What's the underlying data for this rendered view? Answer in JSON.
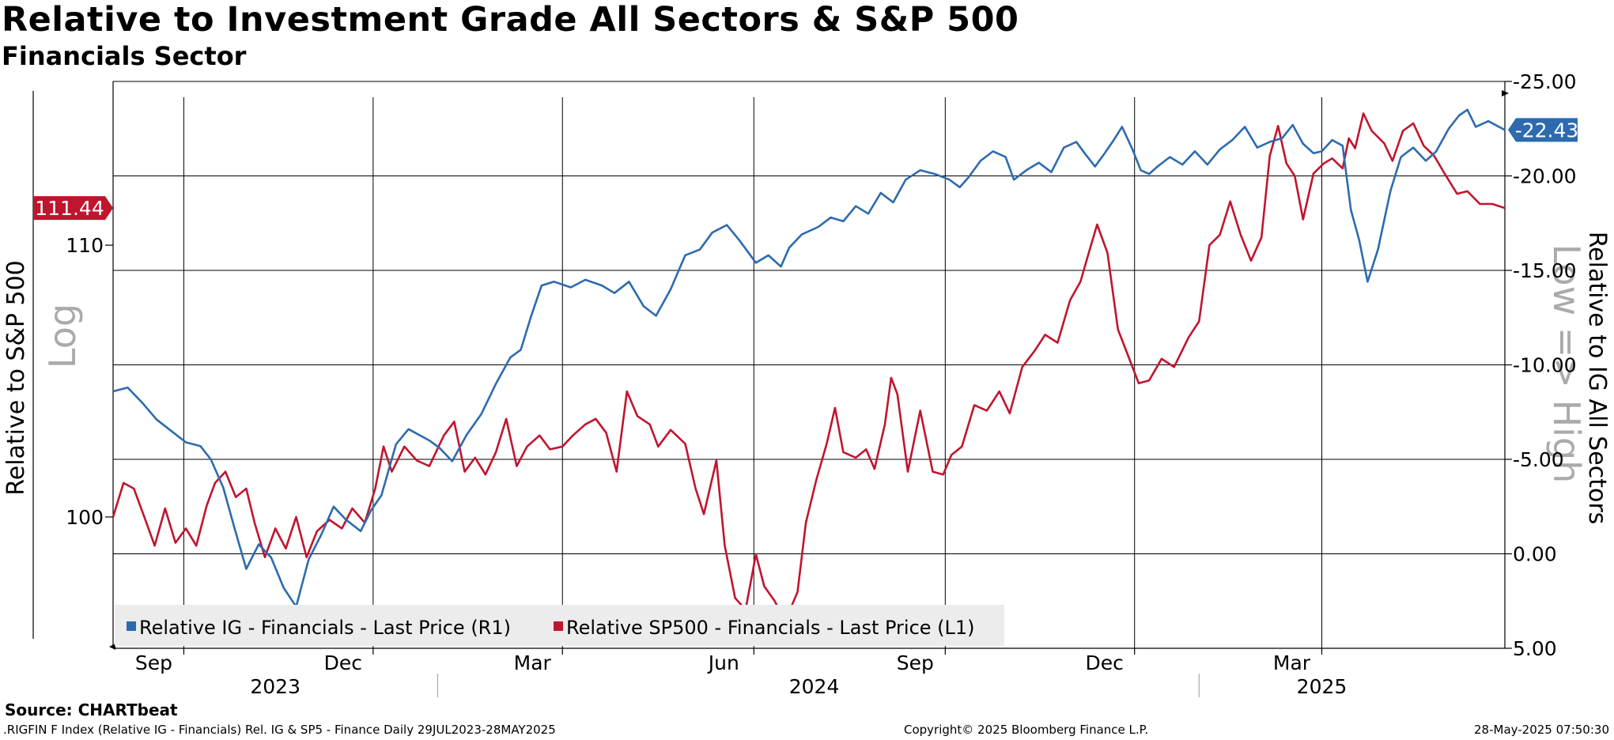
{
  "header": {
    "title": "Relative to Investment Grade All Sectors & S&P 500",
    "subtitle": "Financials Sector"
  },
  "footer": {
    "source": "Source: CHARTbeat",
    "index_info": ".RIGFIN F Index (Relative IG - Financials) Rel. IG & SP5 - Finance  Daily 29JUL2023-28MAY2025",
    "copyright": "Copyright© 2025 Bloomberg Finance L.P.",
    "timestamp": "28-May-2025 07:50:30"
  },
  "chart_data": {
    "type": "line",
    "title": "Relative to Investment Grade All Sectors & S&P 500",
    "subtitle": "Financials Sector",
    "left_axis": {
      "label": "Relative to S&P 500",
      "scale": "log",
      "scale_watermark": "Log",
      "ticks": [
        100,
        110
      ],
      "tick_labels": [
        "100",
        "110"
      ],
      "range": [
        95.5,
        116.5
      ]
    },
    "right_axis": {
      "label": "Relative to IG All Sectors",
      "inverted": true,
      "inversion_watermark": "Low => High",
      "ticks": [
        -25,
        -20,
        -15,
        -10,
        -5,
        0,
        5
      ],
      "tick_labels": [
        "-25.00",
        "-20.00",
        "-15.00",
        "-10.00",
        "-5.00",
        "0.00",
        "5.00"
      ],
      "range": [
        5,
        -25
      ]
    },
    "x_axis": {
      "range": [
        "2023-07-29",
        "2025-05-28"
      ],
      "month_ticks": [
        {
          "label": "Sep",
          "date": "2023-09-01"
        },
        {
          "label": "Dec",
          "date": "2023-12-01"
        },
        {
          "label": "Mar",
          "date": "2024-03-01"
        },
        {
          "label": "Jun",
          "date": "2024-06-01"
        },
        {
          "label": "Sep",
          "date": "2024-09-01"
        },
        {
          "label": "Dec",
          "date": "2024-12-01"
        },
        {
          "label": "Mar",
          "date": "2025-03-01"
        }
      ],
      "year_labels": [
        {
          "label": "2023",
          "date": "2023-10-15"
        },
        {
          "label": "2024",
          "date": "2024-06-30"
        },
        {
          "label": "2025",
          "date": "2025-03-01"
        }
      ],
      "year_separators": [
        "2024-01-01",
        "2025-01-01"
      ]
    },
    "grid": true,
    "legend_position": "bottom-left",
    "series": [
      {
        "name": "Relative IG - Financials - Last Price (R1)",
        "axis": "right",
        "color": "#2D6BAE",
        "last_value": -22.43,
        "last_label": "-22.43",
        "points": [
          [
            "2023-07-29",
            -8.6
          ],
          [
            "2023-08-05",
            -8.8
          ],
          [
            "2023-08-12",
            -8.0
          ],
          [
            "2023-08-19",
            -7.1
          ],
          [
            "2023-08-26",
            -6.5
          ],
          [
            "2023-09-02",
            -5.9
          ],
          [
            "2023-09-09",
            -5.7
          ],
          [
            "2023-09-14",
            -5.0
          ],
          [
            "2023-09-20",
            -3.5
          ],
          [
            "2023-09-25",
            -1.5
          ],
          [
            "2023-10-01",
            0.8
          ],
          [
            "2023-10-07",
            -0.5
          ],
          [
            "2023-10-13",
            0.2
          ],
          [
            "2023-10-19",
            1.8
          ],
          [
            "2023-10-25",
            2.8
          ],
          [
            "2023-10-31",
            0.3
          ],
          [
            "2023-11-06",
            -1.0
          ],
          [
            "2023-11-12",
            -2.5
          ],
          [
            "2023-11-18",
            -1.8
          ],
          [
            "2023-11-25",
            -1.2
          ],
          [
            "2023-11-30",
            -2.3
          ],
          [
            "2023-12-05",
            -3.1
          ],
          [
            "2023-12-12",
            -5.8
          ],
          [
            "2023-12-18",
            -6.6
          ],
          [
            "2023-12-28",
            -6.0
          ],
          [
            "2024-01-02",
            -5.6
          ],
          [
            "2024-01-08",
            -4.9
          ],
          [
            "2024-01-15",
            -6.3
          ],
          [
            "2024-01-22",
            -7.4
          ],
          [
            "2024-01-29",
            -9.0
          ],
          [
            "2024-02-05",
            -10.4
          ],
          [
            "2024-02-10",
            -10.8
          ],
          [
            "2024-02-15",
            -12.6
          ],
          [
            "2024-02-20",
            -14.2
          ],
          [
            "2024-02-26",
            -14.4
          ],
          [
            "2024-03-05",
            -14.1
          ],
          [
            "2024-03-12",
            -14.5
          ],
          [
            "2024-03-20",
            -14.2
          ],
          [
            "2024-03-26",
            -13.8
          ],
          [
            "2024-04-02",
            -14.4
          ],
          [
            "2024-04-09",
            -13.1
          ],
          [
            "2024-04-15",
            -12.6
          ],
          [
            "2024-04-22",
            -14.0
          ],
          [
            "2024-04-29",
            -15.8
          ],
          [
            "2024-05-06",
            -16.1
          ],
          [
            "2024-05-12",
            -17.0
          ],
          [
            "2024-05-19",
            -17.4
          ],
          [
            "2024-05-25",
            -16.6
          ],
          [
            "2024-06-02",
            -15.4
          ],
          [
            "2024-06-08",
            -15.8
          ],
          [
            "2024-06-14",
            -15.2
          ],
          [
            "2024-06-18",
            -16.2
          ],
          [
            "2024-06-24",
            -16.9
          ],
          [
            "2024-07-02",
            -17.3
          ],
          [
            "2024-07-08",
            -17.8
          ],
          [
            "2024-07-14",
            -17.6
          ],
          [
            "2024-07-20",
            -18.4
          ],
          [
            "2024-07-26",
            -18.0
          ],
          [
            "2024-08-01",
            -19.1
          ],
          [
            "2024-08-07",
            -18.6
          ],
          [
            "2024-08-13",
            -19.8
          ],
          [
            "2024-08-20",
            -20.3
          ],
          [
            "2024-08-27",
            -20.1
          ],
          [
            "2024-09-03",
            -19.8
          ],
          [
            "2024-09-08",
            -19.4
          ],
          [
            "2024-09-12",
            -19.9
          ],
          [
            "2024-09-18",
            -20.8
          ],
          [
            "2024-09-24",
            -21.3
          ],
          [
            "2024-09-30",
            -21.0
          ],
          [
            "2024-10-04",
            -19.8
          ],
          [
            "2024-10-10",
            -20.3
          ],
          [
            "2024-10-16",
            -20.7
          ],
          [
            "2024-10-22",
            -20.2
          ],
          [
            "2024-10-28",
            -21.5
          ],
          [
            "2024-11-03",
            -21.8
          ],
          [
            "2024-11-07",
            -21.2
          ],
          [
            "2024-11-12",
            -20.5
          ],
          [
            "2024-11-16",
            -21.1
          ],
          [
            "2024-11-21",
            -21.9
          ],
          [
            "2024-11-25",
            -22.6
          ],
          [
            "2024-11-30",
            -21.4
          ],
          [
            "2024-12-04",
            -20.3
          ],
          [
            "2024-12-08",
            -20.1
          ],
          [
            "2024-12-12",
            -20.5
          ],
          [
            "2024-12-18",
            -21.0
          ],
          [
            "2024-12-24",
            -20.6
          ],
          [
            "2024-12-30",
            -21.3
          ],
          [
            "2025-01-05",
            -20.6
          ],
          [
            "2025-01-11",
            -21.4
          ],
          [
            "2025-01-17",
            -21.9
          ],
          [
            "2025-01-23",
            -22.6
          ],
          [
            "2025-01-29",
            -21.5
          ],
          [
            "2025-02-04",
            -21.8
          ],
          [
            "2025-02-10",
            -22.0
          ],
          [
            "2025-02-15",
            -22.7
          ],
          [
            "2025-02-20",
            -21.7
          ],
          [
            "2025-02-25",
            -21.2
          ],
          [
            "2025-03-01",
            -21.3
          ],
          [
            "2025-03-06",
            -21.9
          ],
          [
            "2025-03-11",
            -21.6
          ],
          [
            "2025-03-15",
            -18.2
          ],
          [
            "2025-03-19",
            -16.6
          ],
          [
            "2025-03-23",
            -14.4
          ],
          [
            "2025-03-28",
            -16.1
          ],
          [
            "2025-04-03",
            -19.2
          ],
          [
            "2025-04-08",
            -21.0
          ],
          [
            "2025-04-14",
            -21.5
          ],
          [
            "2025-04-20",
            -20.8
          ],
          [
            "2025-04-25",
            -21.3
          ],
          [
            "2025-05-01",
            -22.5
          ],
          [
            "2025-05-06",
            -23.2
          ],
          [
            "2025-05-10",
            -23.5
          ],
          [
            "2025-05-14",
            -22.6
          ],
          [
            "2025-05-20",
            -22.9
          ],
          [
            "2025-05-28",
            -22.43
          ]
        ]
      },
      {
        "name": "Relative SP500 - Financials - Last Price (L1)",
        "axis": "left",
        "color": "#C0152F",
        "last_value": 111.44,
        "last_label": "111.44",
        "points": [
          [
            "2023-07-29",
            100.0
          ],
          [
            "2023-08-03",
            101.2
          ],
          [
            "2023-08-08",
            101.0
          ],
          [
            "2023-08-13",
            100.0
          ],
          [
            "2023-08-18",
            99.0
          ],
          [
            "2023-08-23",
            100.3
          ],
          [
            "2023-08-28",
            99.1
          ],
          [
            "2023-09-02",
            99.6
          ],
          [
            "2023-09-07",
            99.0
          ],
          [
            "2023-09-12",
            100.4
          ],
          [
            "2023-09-16",
            101.2
          ],
          [
            "2023-09-21",
            101.6
          ],
          [
            "2023-09-26",
            100.7
          ],
          [
            "2023-10-01",
            101.0
          ],
          [
            "2023-10-05",
            99.8
          ],
          [
            "2023-10-10",
            98.6
          ],
          [
            "2023-10-15",
            99.6
          ],
          [
            "2023-10-20",
            98.9
          ],
          [
            "2023-10-25",
            100.0
          ],
          [
            "2023-10-30",
            98.6
          ],
          [
            "2023-11-04",
            99.5
          ],
          [
            "2023-11-10",
            99.9
          ],
          [
            "2023-11-16",
            99.6
          ],
          [
            "2023-11-21",
            100.3
          ],
          [
            "2023-11-27",
            99.8
          ],
          [
            "2023-12-02",
            101.0
          ],
          [
            "2023-12-06",
            102.5
          ],
          [
            "2023-12-10",
            101.6
          ],
          [
            "2023-12-16",
            102.5
          ],
          [
            "2023-12-22",
            102.0
          ],
          [
            "2023-12-28",
            101.8
          ],
          [
            "2024-01-04",
            102.9
          ],
          [
            "2024-01-09",
            103.4
          ],
          [
            "2024-01-14",
            101.6
          ],
          [
            "2024-01-19",
            102.1
          ],
          [
            "2024-01-24",
            101.5
          ],
          [
            "2024-01-29",
            102.3
          ],
          [
            "2024-02-03",
            103.5
          ],
          [
            "2024-02-08",
            101.8
          ],
          [
            "2024-02-13",
            102.5
          ],
          [
            "2024-02-19",
            102.9
          ],
          [
            "2024-02-24",
            102.4
          ],
          [
            "2024-03-01",
            102.5
          ],
          [
            "2024-03-06",
            102.9
          ],
          [
            "2024-03-12",
            103.3
          ],
          [
            "2024-03-17",
            103.5
          ],
          [
            "2024-03-22",
            103.0
          ],
          [
            "2024-03-27",
            101.6
          ],
          [
            "2024-04-01",
            104.5
          ],
          [
            "2024-04-06",
            103.6
          ],
          [
            "2024-04-12",
            103.3
          ],
          [
            "2024-04-16",
            102.5
          ],
          [
            "2024-04-22",
            103.1
          ],
          [
            "2024-04-29",
            102.6
          ],
          [
            "2024-05-04",
            101.0
          ],
          [
            "2024-05-08",
            100.1
          ],
          [
            "2024-05-14",
            102.0
          ],
          [
            "2024-05-18",
            99.0
          ],
          [
            "2024-05-23",
            97.2
          ],
          [
            "2024-05-28",
            96.8
          ],
          [
            "2024-06-02",
            98.7
          ],
          [
            "2024-06-06",
            97.6
          ],
          [
            "2024-06-11",
            97.1
          ],
          [
            "2024-06-16",
            96.4
          ],
          [
            "2024-06-22",
            97.4
          ],
          [
            "2024-06-26",
            99.8
          ],
          [
            "2024-07-01",
            101.3
          ],
          [
            "2024-07-06",
            102.6
          ],
          [
            "2024-07-10",
            103.9
          ],
          [
            "2024-07-14",
            102.3
          ],
          [
            "2024-07-20",
            102.1
          ],
          [
            "2024-07-25",
            102.4
          ],
          [
            "2024-07-29",
            101.7
          ],
          [
            "2024-08-03",
            103.3
          ],
          [
            "2024-08-06",
            105.0
          ],
          [
            "2024-08-09",
            104.4
          ],
          [
            "2024-08-14",
            101.6
          ],
          [
            "2024-08-20",
            103.8
          ],
          [
            "2024-08-26",
            101.6
          ],
          [
            "2024-08-31",
            101.5
          ],
          [
            "2024-09-04",
            102.2
          ],
          [
            "2024-09-09",
            102.5
          ],
          [
            "2024-09-15",
            104.0
          ],
          [
            "2024-09-21",
            103.8
          ],
          [
            "2024-09-27",
            104.5
          ],
          [
            "2024-10-02",
            103.7
          ],
          [
            "2024-10-08",
            105.4
          ],
          [
            "2024-10-14",
            106.0
          ],
          [
            "2024-10-19",
            106.6
          ],
          [
            "2024-10-25",
            106.3
          ],
          [
            "2024-10-31",
            107.9
          ],
          [
            "2024-11-05",
            108.6
          ],
          [
            "2024-11-09",
            109.7
          ],
          [
            "2024-11-13",
            110.8
          ],
          [
            "2024-11-18",
            109.7
          ],
          [
            "2024-11-23",
            106.8
          ],
          [
            "2024-11-28",
            105.8
          ],
          [
            "2024-12-03",
            104.8
          ],
          [
            "2024-12-08",
            104.9
          ],
          [
            "2024-12-14",
            105.7
          ],
          [
            "2024-12-20",
            105.4
          ],
          [
            "2024-12-27",
            106.5
          ],
          [
            "2025-01-01",
            107.1
          ],
          [
            "2025-01-06",
            110.0
          ],
          [
            "2025-01-11",
            110.4
          ],
          [
            "2025-01-16",
            111.7
          ],
          [
            "2025-01-21",
            110.4
          ],
          [
            "2025-01-26",
            109.4
          ],
          [
            "2025-01-31",
            110.3
          ],
          [
            "2025-02-04",
            113.5
          ],
          [
            "2025-02-08",
            114.7
          ],
          [
            "2025-02-12",
            113.2
          ],
          [
            "2025-02-16",
            112.7
          ],
          [
            "2025-02-20",
            111.0
          ],
          [
            "2025-02-25",
            112.8
          ],
          [
            "2025-03-02",
            113.2
          ],
          [
            "2025-03-06",
            113.4
          ],
          [
            "2025-03-11",
            113.0
          ],
          [
            "2025-03-14",
            114.2
          ],
          [
            "2025-03-17",
            113.8
          ],
          [
            "2025-03-21",
            115.2
          ],
          [
            "2025-03-25",
            114.5
          ],
          [
            "2025-03-31",
            114.0
          ],
          [
            "2025-04-04",
            113.3
          ],
          [
            "2025-04-09",
            114.5
          ],
          [
            "2025-04-14",
            114.8
          ],
          [
            "2025-04-19",
            113.9
          ],
          [
            "2025-04-24",
            113.5
          ],
          [
            "2025-04-29",
            112.8
          ],
          [
            "2025-05-05",
            112.0
          ],
          [
            "2025-05-10",
            112.1
          ],
          [
            "2025-05-16",
            111.6
          ],
          [
            "2025-05-22",
            111.6
          ],
          [
            "2025-05-28",
            111.44
          ]
        ]
      }
    ]
  }
}
